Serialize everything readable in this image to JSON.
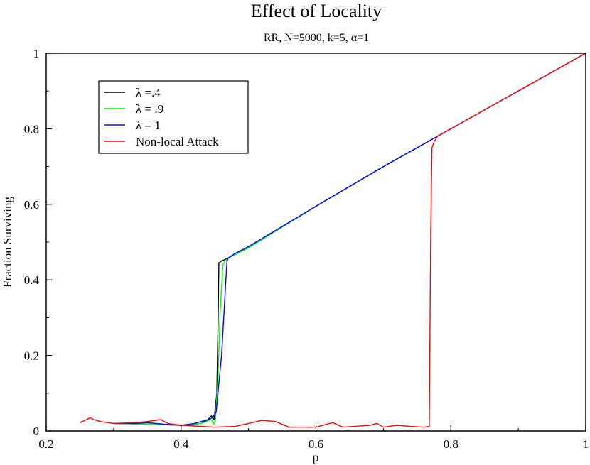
{
  "chart_data": {
    "type": "line",
    "title": "Effect of Locality",
    "subtitle": "RR, N=5000, k=5, α=1",
    "xlabel": "p",
    "ylabel": "Fraction Surviving",
    "xlim": [
      0.2,
      1.0
    ],
    "ylim": [
      0.0,
      1.0
    ],
    "xticks": [
      "0.2",
      "0.4",
      "0.6",
      "0.8",
      "1"
    ],
    "yticks": [
      "0",
      "0.2",
      "0.4",
      "0.6",
      "0.8",
      "1"
    ],
    "grid": false,
    "legend_position": "top-left",
    "series": [
      {
        "name": "λ =.4",
        "color": "#000000",
        "x": [
          0.3,
          0.35,
          0.4,
          0.43,
          0.44,
          0.445,
          0.449,
          0.453,
          0.455,
          0.456,
          0.46,
          0.47,
          0.5,
          0.6,
          0.7,
          0.8,
          0.9,
          1.0
        ],
        "y": [
          0.02,
          0.018,
          0.015,
          0.02,
          0.03,
          0.04,
          0.03,
          0.1,
          0.3,
          0.445,
          0.45,
          0.458,
          0.485,
          0.595,
          0.7,
          0.8,
          0.9,
          1.0
        ]
      },
      {
        "name": "λ = .9",
        "color": "#00ff00",
        "x": [
          0.3,
          0.35,
          0.4,
          0.43,
          0.445,
          0.448,
          0.451,
          0.455,
          0.458,
          0.462,
          0.465,
          0.47,
          0.5,
          0.6,
          0.7,
          0.8,
          0.9,
          1.0
        ],
        "y": [
          0.02,
          0.018,
          0.015,
          0.02,
          0.03,
          0.018,
          0.028,
          0.15,
          0.32,
          0.44,
          0.45,
          0.458,
          0.485,
          0.595,
          0.7,
          0.8,
          0.9,
          1.0
        ]
      },
      {
        "name": "λ = 1",
        "color": "#0000ff",
        "x": [
          0.3,
          0.33,
          0.35,
          0.38,
          0.4,
          0.42,
          0.44,
          0.447,
          0.452,
          0.46,
          0.468,
          0.47,
          0.48,
          0.5,
          0.6,
          0.7,
          0.8,
          0.9,
          1.0
        ],
        "y": [
          0.02,
          0.02,
          0.022,
          0.017,
          0.015,
          0.02,
          0.03,
          0.035,
          0.05,
          0.2,
          0.45,
          0.458,
          0.47,
          0.488,
          0.595,
          0.7,
          0.8,
          0.9,
          1.0
        ]
      },
      {
        "name": "Non-local Attack",
        "color": "#ff0000",
        "x": [
          0.25,
          0.26,
          0.265,
          0.27,
          0.28,
          0.3,
          0.33,
          0.35,
          0.37,
          0.38,
          0.4,
          0.45,
          0.48,
          0.5,
          0.52,
          0.54,
          0.56,
          0.6,
          0.62,
          0.625,
          0.64,
          0.68,
          0.69,
          0.7,
          0.72,
          0.74,
          0.76,
          0.768,
          0.77,
          0.772,
          0.775,
          0.78,
          0.8,
          0.9,
          1.0
        ],
        "y": [
          0.022,
          0.03,
          0.035,
          0.03,
          0.025,
          0.02,
          0.022,
          0.025,
          0.03,
          0.02,
          0.015,
          0.01,
          0.012,
          0.02,
          0.028,
          0.025,
          0.01,
          0.01,
          0.02,
          0.022,
          0.01,
          0.015,
          0.02,
          0.01,
          0.015,
          0.012,
          0.01,
          0.012,
          0.5,
          0.75,
          0.765,
          0.78,
          0.8,
          0.9,
          1.0
        ]
      }
    ]
  }
}
